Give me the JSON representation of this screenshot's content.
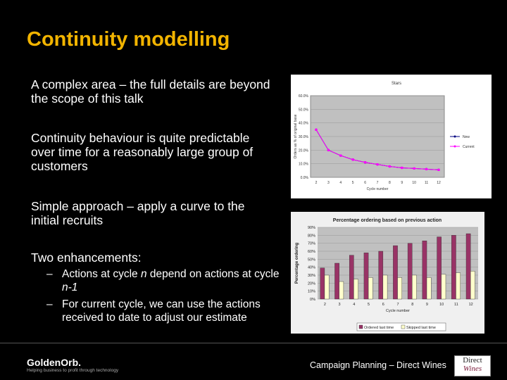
{
  "slide": {
    "title": "Continuity modelling",
    "bullets": [
      "A complex area – the full details are beyond the scope of this talk",
      "Continuity behaviour is quite predictable over time for a reasonably large group of customers",
      "Simple approach – apply a curve to the initial recruits",
      "Two enhancements:"
    ],
    "sub_bullets": [
      {
        "dash": "–",
        "parts": [
          "Actions at cycle ",
          "n",
          " depend on actions at cycle ",
          "n-1",
          ""
        ]
      },
      {
        "dash": "–",
        "parts": [
          "For current cycle, we can use the actions received to date to adjust our estimate",
          "",
          "",
          "",
          ""
        ]
      }
    ]
  },
  "footer": {
    "logo_main": "Golden",
    "logo_orb": "Orb.",
    "tagline": "Helping business to profit through technology",
    "text": "Campaign Planning – Direct Wines",
    "brand_line1": "Direct",
    "brand_line2": "Wines"
  },
  "chart_data": [
    {
      "type": "line",
      "title": "Stars",
      "xlabel": "Cycle number",
      "ylabel": "Orders as % of original base",
      "x": [
        2,
        3,
        4,
        5,
        6,
        7,
        8,
        9,
        10,
        11,
        12
      ],
      "ylim": [
        0,
        60
      ],
      "yticks": [
        "0.0%",
        "10.0%",
        "20.0%",
        "30.0%",
        "40.0%",
        "50.0%",
        "60.0%"
      ],
      "series": [
        {
          "name": "New",
          "color": "#000080",
          "values": [
            35,
            20,
            16,
            13,
            11,
            9.5,
            8,
            7,
            6.5,
            6,
            5.5
          ]
        },
        {
          "name": "Current",
          "color": "#ff00ff",
          "values": [
            35,
            20,
            16,
            13,
            11,
            9.5,
            8,
            7,
            6.5,
            6,
            5.5
          ]
        }
      ],
      "legend": "right"
    },
    {
      "type": "bar",
      "title": "Percentage ordering based on previous action",
      "xlabel": "Cycle number",
      "ylabel": "Percentage ordering",
      "categories": [
        "2",
        "3",
        "4",
        "5",
        "6",
        "7",
        "8",
        "9",
        "10",
        "11",
        "12"
      ],
      "ylim": [
        0,
        90
      ],
      "yticks": [
        "0%",
        "10%",
        "20%",
        "30%",
        "40%",
        "50%",
        "60%",
        "70%",
        "80%",
        "90%"
      ],
      "series": [
        {
          "name": "Ordered last time",
          "color": "#993366",
          "values": [
            39,
            45,
            55,
            58,
            60,
            67,
            70,
            73,
            78,
            80,
            82
          ]
        },
        {
          "name": "Skipped last time",
          "color": "#ffffcc",
          "values": [
            30,
            22,
            25,
            27,
            30,
            27,
            30,
            27,
            31,
            33,
            35
          ]
        }
      ],
      "legend": "bottom"
    }
  ]
}
